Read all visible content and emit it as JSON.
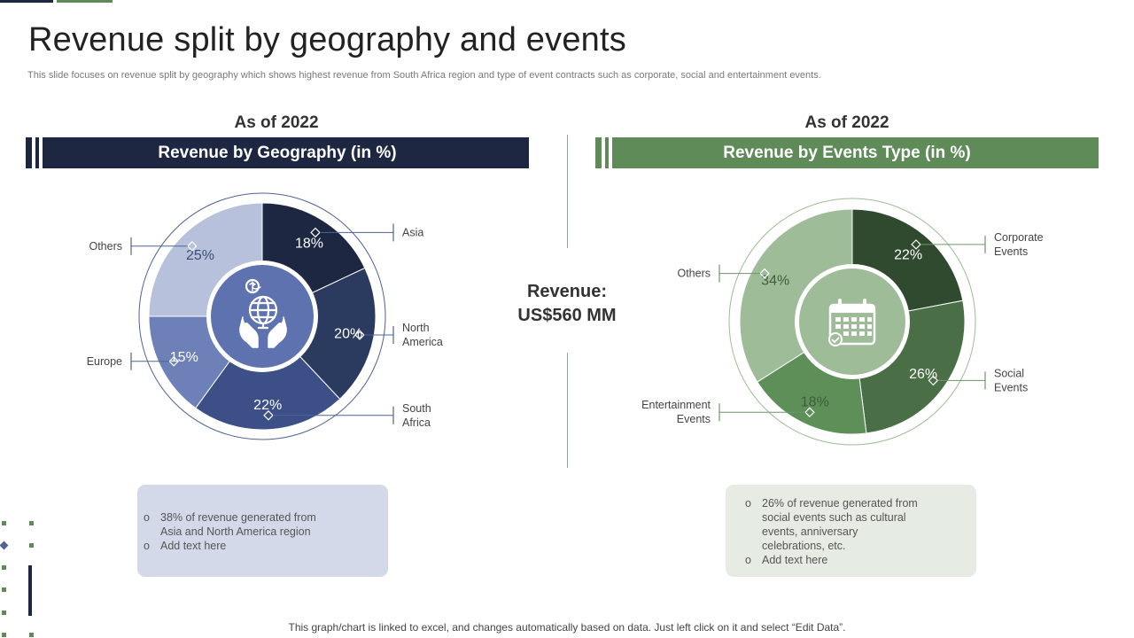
{
  "title": "Revenue split by geography and events",
  "subtitle": "This slide focuses on revenue split by geography which shows highest revenue from South Africa region and type  of event contracts such as corporate, social and entertainment events.",
  "center": {
    "revenue_label": "Revenue:",
    "revenue_value": "US$560 MM"
  },
  "footer": "This graph/chart is linked to excel,  and changes automatically based on data. Just left click on it and select “Edit Data”.",
  "colors": {
    "navy": "#1d2741",
    "green": "#5f8b59",
    "note_blue": "#d3d9e8",
    "note_green": "#e6ece3"
  },
  "icons": {
    "left_center": "globe-dollar-hands-icon",
    "right_center": "calendar-icon"
  },
  "left_panel": {
    "year": "As of 2022",
    "heading": "Revenue by Geography (in %)",
    "notes": [
      "38% of revenue  generated  from\nAsia and North America region",
      "Add text here"
    ]
  },
  "right_panel": {
    "year": "As of 2022",
    "heading": "Revenue by Events Type (in %)",
    "notes": [
      "26% of revenue  generated from\nsocial events such as cultural\nevents, anniversary\ncelebrations, etc.",
      "Add text here"
    ]
  },
  "chart_data": [
    {
      "type": "pie",
      "title": "Revenue by Geography (in %)",
      "unit": "%",
      "slices": [
        {
          "label": "Asia",
          "value": 18,
          "value_label": "18%",
          "color": "#1d2741"
        },
        {
          "label": "North\nAmerica",
          "value": 20,
          "value_label": "20%",
          "color": "#2b3a5f"
        },
        {
          "label": "South\nAfrica",
          "value": 22,
          "value_label": "22%",
          "color": "#3c4f86"
        },
        {
          "label": "Europe",
          "value": 15,
          "value_label": "15%",
          "color": "#6d80b8"
        },
        {
          "label": "Others",
          "value": 25,
          "value_label": "25%",
          "color": "#b7c1db"
        }
      ]
    },
    {
      "type": "pie",
      "title": "Revenue by Events Type (in %)",
      "unit": "%",
      "slices": [
        {
          "label": "Corporate\nEvents",
          "value": 22,
          "value_label": "22%",
          "color": "#2f4a2f"
        },
        {
          "label": "Social\nEvents",
          "value": 26,
          "value_label": "26%",
          "color": "#4a6f47"
        },
        {
          "label": "Entertainment\nEvents",
          "value": 18,
          "value_label": "18%",
          "color": "#5e8f59"
        },
        {
          "label": "Others",
          "value": 34,
          "value_label": "34%",
          "color": "#9fbc98"
        }
      ]
    }
  ]
}
